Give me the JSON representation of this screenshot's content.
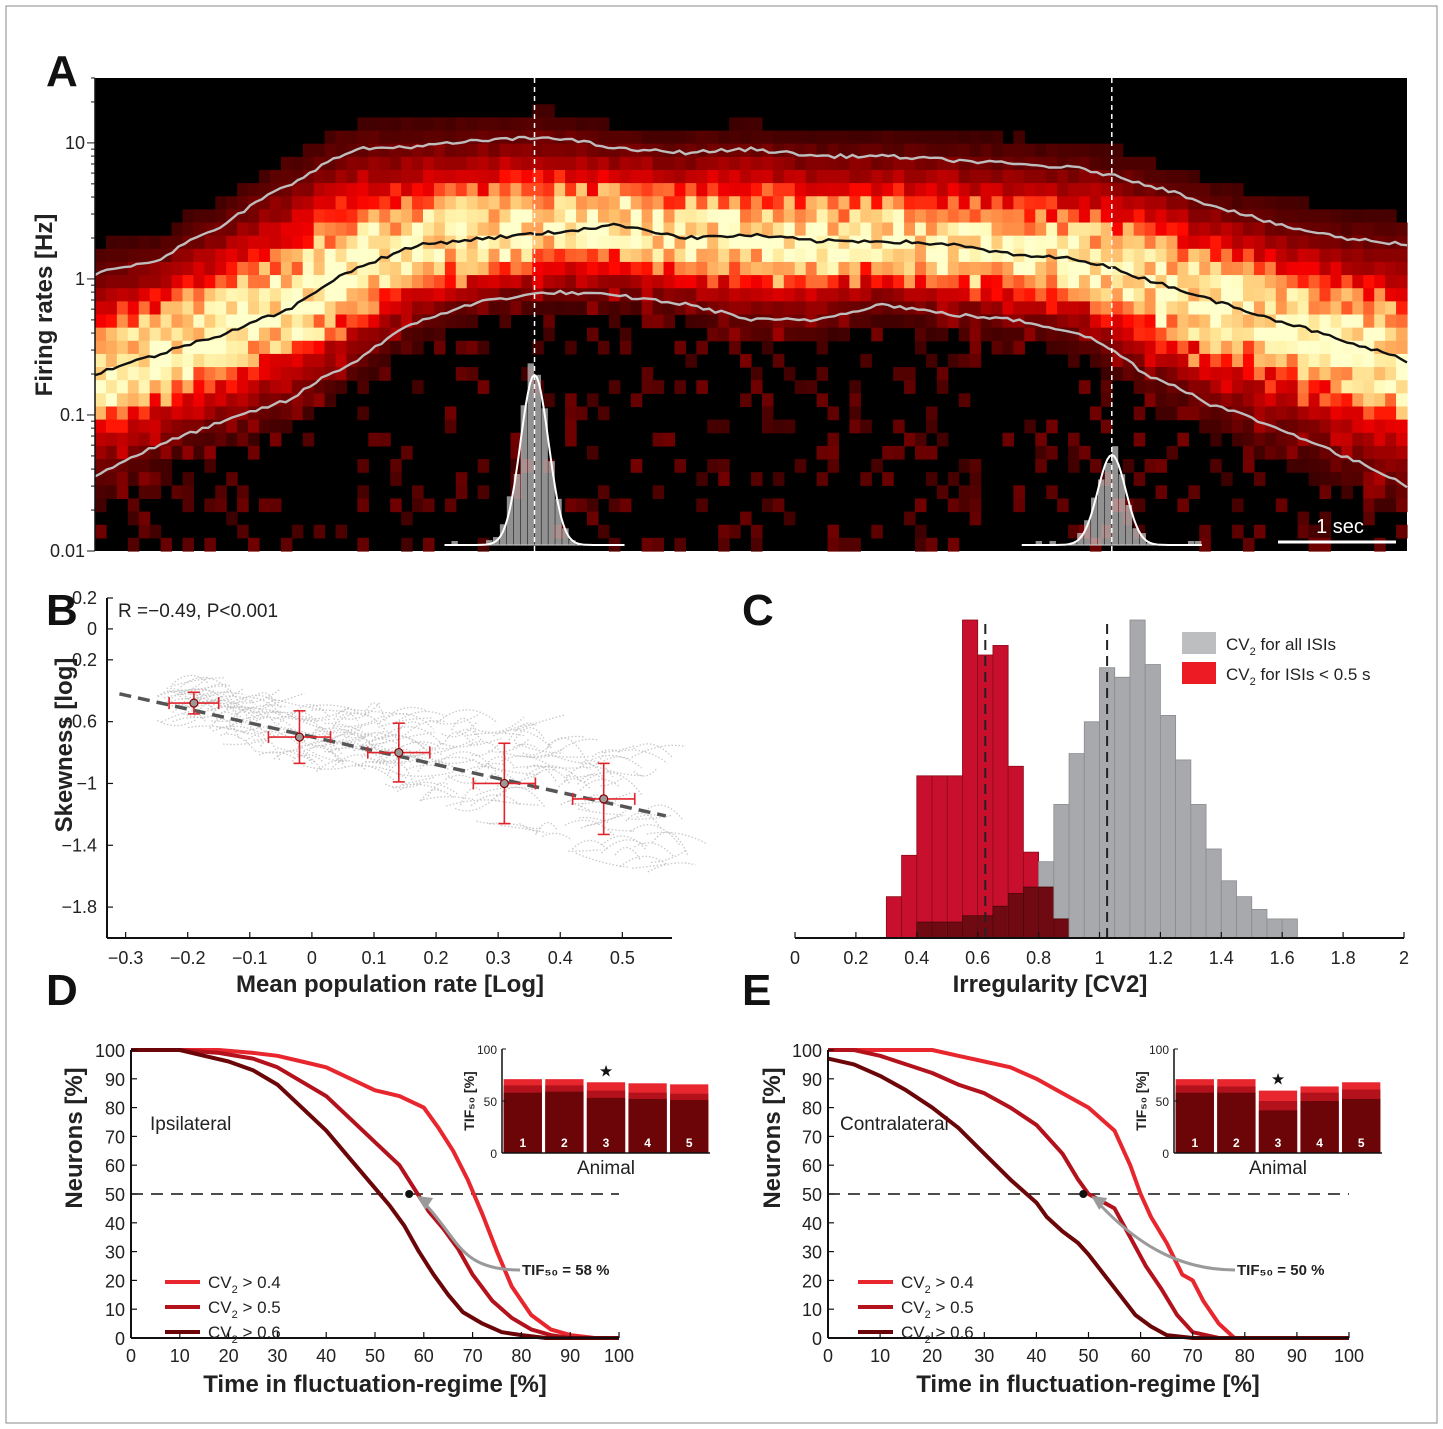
{
  "colors": {
    "red_bright": "#e8262e",
    "red_mid": "#b3121c",
    "red_dark": "#6b0508",
    "gray_hist": "#a7a9ac",
    "scatter_gray": "#bfbfbf",
    "errorbar_red": "#e0242b",
    "fit_line": "#555555"
  },
  "panels": {
    "A": {
      "letter": "A",
      "scale_bar_label": "1 sec"
    },
    "B": {
      "letter": "B",
      "annotation": "R =−0.49, P<0.001"
    },
    "C": {
      "letter": "C"
    },
    "D": {
      "letter": "D"
    },
    "E": {
      "letter": "E"
    }
  },
  "chart_data": [
    {
      "id": "A",
      "type": "heatmap",
      "ylabel": "Firing rates [Hz]",
      "yscale": "log",
      "ylim": [
        0.01,
        30
      ],
      "yticks": [
        0.01,
        0.1,
        1,
        10
      ],
      "ytick_labels": [
        "0.01",
        "0.1",
        "1",
        "10"
      ],
      "scale_bar": "1 sec",
      "lines": [
        {
          "name": "median",
          "color": "#111111",
          "x": [
            0,
            0.05,
            0.1,
            0.15,
            0.2,
            0.25,
            0.3,
            0.35,
            0.4,
            0.45,
            0.5,
            0.55,
            0.6,
            0.65,
            0.7,
            0.75,
            0.8,
            0.85,
            0.9,
            0.95,
            1.0
          ],
          "y": [
            0.2,
            0.28,
            0.4,
            0.6,
            1.2,
            1.8,
            2.0,
            2.2,
            2.5,
            2.0,
            2.1,
            1.9,
            1.9,
            1.8,
            1.5,
            1.4,
            1.0,
            0.7,
            0.5,
            0.35,
            0.25
          ]
        },
        {
          "name": "upper",
          "color": "#bdbdbd",
          "x": [
            0,
            0.05,
            0.1,
            0.15,
            0.2,
            0.25,
            0.3,
            0.35,
            0.4,
            0.45,
            0.5,
            0.55,
            0.6,
            0.65,
            0.7,
            0.75,
            0.8,
            0.85,
            0.9,
            0.95,
            1.0
          ],
          "y": [
            1.1,
            1.4,
            2.5,
            5.0,
            9.0,
            9.5,
            10.5,
            11.0,
            9.0,
            8.5,
            9.0,
            8.0,
            8.0,
            7.5,
            7.0,
            6.5,
            5.0,
            3.5,
            2.5,
            2.0,
            1.8
          ]
        },
        {
          "name": "lower",
          "color": "#bdbdbd",
          "x": [
            0,
            0.05,
            0.1,
            0.15,
            0.2,
            0.25,
            0.3,
            0.35,
            0.4,
            0.45,
            0.5,
            0.55,
            0.6,
            0.65,
            0.7,
            0.75,
            0.8,
            0.85,
            0.9,
            0.95,
            1.0
          ],
          "y": [
            0.035,
            0.06,
            0.09,
            0.13,
            0.25,
            0.5,
            0.7,
            0.8,
            0.75,
            0.65,
            0.5,
            0.5,
            0.65,
            0.55,
            0.5,
            0.4,
            0.2,
            0.12,
            0.08,
            0.05,
            0.03
          ]
        }
      ],
      "vlines": [
        0.335,
        0.775
      ]
    },
    {
      "id": "B",
      "type": "scatter",
      "xlabel": "Mean population rate [Log]",
      "ylabel": "Skewness [log]",
      "xlim": [
        -0.33,
        0.58
      ],
      "ylim": [
        -2.0,
        0.2
      ],
      "xticks": [
        -0.3,
        -0.2,
        -0.1,
        0,
        0.1,
        0.2,
        0.3,
        0.4,
        0.5
      ],
      "xtick_labels": [
        "−0.3",
        "−0.2",
        "−0.1",
        "0",
        "0.1",
        "0.2",
        "0.3",
        "0.4",
        "0.5"
      ],
      "yticks": [
        0.2,
        0,
        -0.2,
        -0.6,
        -1,
        -1.4,
        -1.8
      ],
      "ytick_labels": [
        "0.2",
        "0",
        "−0.2",
        "−0.6",
        "−1",
        "−1.4",
        "−1.8"
      ],
      "fit_line": {
        "x": [
          -0.31,
          0.57
        ],
        "y": [
          -0.42,
          -1.21
        ]
      },
      "means": [
        {
          "x": -0.19,
          "y": -0.48,
          "xerr": 0.04,
          "yerr": 0.07
        },
        {
          "x": -0.02,
          "y": -0.7,
          "xerr": 0.05,
          "yerr": 0.17
        },
        {
          "x": 0.14,
          "y": -0.8,
          "xerr": 0.05,
          "yerr": 0.19
        },
        {
          "x": 0.31,
          "y": -1.0,
          "xerr": 0.05,
          "yerr": 0.26
        },
        {
          "x": 0.47,
          "y": -1.1,
          "xerr": 0.05,
          "yerr": 0.23
        }
      ],
      "annotation": "R =−0.49, P<0.001"
    },
    {
      "id": "C",
      "type": "bar",
      "xlabel": "Irregularity [CV2]",
      "xlim": [
        0,
        2
      ],
      "xticks": [
        0,
        0.2,
        0.4,
        0.6,
        0.8,
        1,
        1.2,
        1.4,
        1.6,
        1.8,
        2
      ],
      "xtick_labels": [
        "0",
        "0.2",
        "0.4",
        "0.6",
        "0.8",
        "1",
        "1.2",
        "1.4",
        "1.6",
        "1.8",
        "2"
      ],
      "bin_width": 0.05,
      "bin_starts": [
        0.3,
        0.35,
        0.4,
        0.45,
        0.5,
        0.55,
        0.6,
        0.65,
        0.7,
        0.75,
        0.8,
        0.85,
        0.9,
        0.95,
        1.0,
        1.05,
        1.1,
        1.15,
        1.2,
        1.25,
        1.3,
        1.35,
        1.4,
        1.45,
        1.5,
        1.55,
        1.6
      ],
      "series": [
        {
          "name": "CV 2 for all ISIs",
          "legend_main": "CV",
          "legend_sub": "2",
          "legend_rest": " for all ISIs",
          "color": "#a7a9ac",
          "values": [
            0,
            0,
            0.05,
            0.05,
            0.05,
            0.07,
            0.07,
            0.1,
            0.14,
            0.16,
            0.24,
            0.42,
            0.58,
            0.68,
            0.85,
            0.82,
            1.0,
            0.86,
            0.7,
            0.56,
            0.42,
            0.28,
            0.18,
            0.13,
            0.09,
            0.06,
            0.06
          ]
        },
        {
          "name": "CV 2 for ISIs < 0.5 s",
          "legend_main": "CV",
          "legend_sub": "2",
          "legend_rest": " for ISIs < 0.5 s",
          "color": "#c8102e",
          "values": [
            0.13,
            0.26,
            0.51,
            0.51,
            0.51,
            1.0,
            0.89,
            0.92,
            0.54,
            0.27,
            0.16,
            0.06,
            0,
            0,
            0,
            0,
            0,
            0,
            0,
            0,
            0,
            0,
            0,
            0,
            0,
            0,
            0
          ]
        }
      ],
      "means": [
        0.625,
        1.025
      ]
    },
    {
      "id": "D",
      "type": "line",
      "xlabel": "Time in fluctuation-regime [%]",
      "ylabel": "Neurons [%]",
      "xlim": [
        0,
        100
      ],
      "ylim": [
        0,
        100
      ],
      "xticks": [
        0,
        10,
        20,
        30,
        40,
        50,
        60,
        70,
        80,
        90,
        100
      ],
      "yticks": [
        0,
        10,
        20,
        30,
        40,
        50,
        60,
        70,
        80,
        90,
        100
      ],
      "region_label": "Ipsilateral",
      "tif_label": "TIF₅₀ = 58 %",
      "tif_point": {
        "x": 57,
        "y": 50
      },
      "series": [
        {
          "name": "CV 2 > 0.4",
          "legend_main": "CV",
          "legend_sub": "2",
          "legend_rest": " > 0.4",
          "color": "#e8262e",
          "x": [
            0,
            10,
            18,
            25,
            30,
            35,
            40,
            45,
            50,
            55,
            60,
            63,
            66,
            69,
            72,
            75,
            78,
            82,
            86,
            90,
            95,
            100
          ],
          "y": [
            100,
            100,
            100,
            99,
            98,
            96,
            94,
            90,
            86,
            84,
            80,
            73,
            65,
            55,
            43,
            30,
            18,
            8,
            3,
            1,
            0,
            0
          ]
        },
        {
          "name": "CV 2 > 0.5",
          "legend_main": "CV",
          "legend_sub": "2",
          "legend_rest": " > 0.5",
          "color": "#b3121c",
          "x": [
            0,
            10,
            18,
            25,
            30,
            35,
            40,
            45,
            50,
            55,
            58,
            61,
            64,
            67,
            70,
            74,
            78,
            82,
            86,
            90,
            95,
            100
          ],
          "y": [
            100,
            100,
            99,
            97,
            94,
            89,
            84,
            76,
            68,
            60,
            52,
            44,
            38,
            31,
            22,
            13,
            7,
            3,
            1,
            0,
            0,
            0
          ]
        },
        {
          "name": "CV 2 > 0.6",
          "legend_main": "CV",
          "legend_sub": "2",
          "legend_rest": " > 0.6",
          "color": "#6b0508",
          "x": [
            0,
            10,
            15,
            20,
            25,
            30,
            35,
            40,
            45,
            50,
            53,
            56,
            59,
            62,
            65,
            68,
            72,
            76,
            80,
            85,
            90,
            100
          ],
          "y": [
            100,
            100,
            98,
            96,
            93,
            88,
            80,
            72,
            62,
            52,
            46,
            39,
            30,
            22,
            15,
            9,
            5,
            2,
            1,
            0,
            0,
            0
          ]
        }
      ],
      "inset": {
        "type": "bar",
        "ylabel": "TIF₅₀ [%]",
        "xlabel": "Animal",
        "ylim": [
          0,
          100
        ],
        "yticks": [
          0,
          50,
          100
        ],
        "categories": [
          "1",
          "2",
          "3",
          "4",
          "5"
        ],
        "significant": "3",
        "series": [
          {
            "name": "CV 2 > 0.4",
            "values": [
              71,
              71,
              68,
              67,
              66
            ]
          },
          {
            "name": "CV 2 > 0.5",
            "values": [
              65,
              65,
              60,
              58,
              57
            ]
          },
          {
            "name": "CV 2 > 0.6",
            "values": [
              58,
              59,
              53,
              52,
              51
            ]
          }
        ]
      }
    },
    {
      "id": "E",
      "type": "line",
      "xlabel": "Time in fluctuation-regime [%]",
      "ylabel": "Neurons [%]",
      "xlim": [
        0,
        100
      ],
      "ylim": [
        0,
        100
      ],
      "xticks": [
        0,
        10,
        20,
        30,
        40,
        50,
        60,
        70,
        80,
        90,
        100
      ],
      "yticks": [
        0,
        10,
        20,
        30,
        40,
        50,
        60,
        70,
        80,
        90,
        100
      ],
      "region_label": "Contralateral",
      "tif_label": "TIF₅₀ = 50 %",
      "tif_point": {
        "x": 49,
        "y": 50
      },
      "series": [
        {
          "name": "CV 2 > 0.4",
          "legend_main": "CV",
          "legend_sub": "2",
          "legend_rest": " > 0.4",
          "color": "#e8262e",
          "x": [
            0,
            10,
            15,
            20,
            25,
            30,
            35,
            40,
            45,
            50,
            55,
            58,
            60,
            62,
            65,
            68,
            70,
            72,
            75,
            78,
            85,
            100
          ],
          "y": [
            100,
            100,
            100,
            100,
            98,
            96,
            94,
            90,
            85,
            80,
            72,
            60,
            50,
            42,
            33,
            22,
            20,
            13,
            5,
            0,
            0,
            0
          ]
        },
        {
          "name": "CV 2 > 0.5",
          "legend_main": "CV",
          "legend_sub": "2",
          "legend_rest": " > 0.5",
          "color": "#b3121c",
          "x": [
            0,
            5,
            10,
            15,
            20,
            25,
            30,
            35,
            40,
            45,
            48,
            50,
            53,
            55,
            58,
            61,
            64,
            67,
            70,
            75,
            80,
            100
          ],
          "y": [
            100,
            100,
            98,
            95,
            92,
            88,
            85,
            80,
            74,
            64,
            55,
            50,
            47,
            45,
            35,
            25,
            17,
            8,
            2,
            0,
            0,
            0
          ]
        },
        {
          "name": "CV 2 > 0.6",
          "legend_main": "CV",
          "legend_sub": "2",
          "legend_rest": " > 0.6",
          "color": "#6b0508",
          "x": [
            0,
            5,
            10,
            15,
            20,
            25,
            30,
            35,
            40,
            42,
            45,
            48,
            50,
            53,
            56,
            59,
            62,
            65,
            70,
            75,
            80,
            100
          ],
          "y": [
            97,
            95,
            91,
            86,
            80,
            73,
            64,
            55,
            47,
            42,
            37,
            33,
            29,
            22,
            15,
            8,
            4,
            1,
            0,
            0,
            0,
            0
          ]
        }
      ],
      "inset": {
        "type": "bar",
        "ylabel": "TIF₅₀ [%]",
        "xlabel": "Animal",
        "ylim": [
          0,
          100
        ],
        "yticks": [
          0,
          50,
          100
        ],
        "categories": [
          "1",
          "2",
          "3",
          "4",
          "5"
        ],
        "significant": "3",
        "series": [
          {
            "name": "CV 2 > 0.4",
            "values": [
              71,
              71,
              60,
              64,
              68
            ]
          },
          {
            "name": "CV 2 > 0.5",
            "values": [
              65,
              64,
              50,
              58,
              61
            ]
          },
          {
            "name": "CV 2 > 0.6",
            "values": [
              58,
              58,
              41,
              50,
              52
            ]
          }
        ]
      }
    }
  ]
}
